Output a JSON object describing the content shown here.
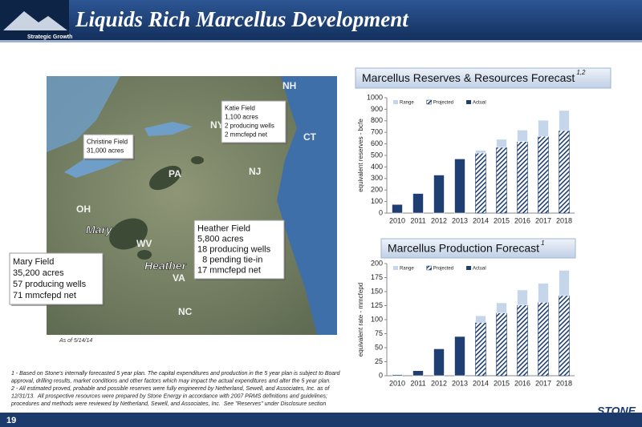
{
  "header": {
    "title": "Liquids Rich Marcellus Development",
    "tag": "Strategic Growth"
  },
  "page_number": "19",
  "logo": "STONE",
  "map": {
    "as_of": "As of 5/14/14",
    "places": [
      "NY",
      "PA",
      "OH",
      "WV",
      "VA",
      "NC",
      "NJ",
      "NH",
      "CT"
    ],
    "fields": [
      "Mary",
      "Heather"
    ],
    "callouts": [
      {
        "lines": [
          "Katie Field",
          "1,100 acres",
          "2 producing wells",
          "2 mmcfepd net"
        ]
      },
      {
        "lines": [
          "Christine Field",
          "31,000 acres"
        ]
      },
      {
        "lines": [
          "Heather Field",
          "5,800 acres",
          "18 producing wells",
          "  8 pending tie-in",
          "17 mmcfepd net"
        ]
      },
      {
        "lines": [
          "Mary Field",
          "35,200 acres",
          "57 producing wells",
          "71 mmcfepd net"
        ]
      }
    ]
  },
  "footnotes": [
    [
      "1 - Based on Stone's internally forecasted 5 year plan. The capital expenditures and production in the 5 year plan is subject to Board",
      "approval, drilling results, market conditions and other factors which may impact the actual expenditures and alter the 5 year plan."
    ],
    [
      "2 - All estimated proved, probable and possible reserves were fully engineered by Netherland, Sewell, and Associates, Inc. as of",
      "12/31/13.  All prospective resources were prepared by Stone Energy in accordance with 2007 PRMS definitions and guidelines;",
      "procedures and methods were reviewed by Netherland, Sewell, and Associates, Inc.  See \"Reserves\" under Disclosure section"
    ]
  ],
  "chart_data": [
    {
      "type": "stacked_bar",
      "title": "Marcellus Reserves & Resources Forecast",
      "title_note": "1,2",
      "y_label": "equivalent reserves - bcfe",
      "categories": [
        "2010",
        "2011",
        "2012",
        "2013",
        "2014",
        "2015",
        "2016",
        "2017",
        "2018"
      ],
      "series": [
        {
          "name": "Actual",
          "color": "#1f3f73",
          "values": [
            75,
            170,
            330,
            470,
            null,
            null,
            null,
            null,
            null
          ]
        },
        {
          "name": "Projected",
          "color": "#1f3f73",
          "hatch": true,
          "values": [
            null,
            null,
            null,
            null,
            520,
            570,
            620,
            665,
            715
          ]
        },
        {
          "name": "Range",
          "color": "#c5d6ea",
          "values": [
            null,
            null,
            null,
            null,
            25,
            70,
            100,
            140,
            175
          ]
        }
      ],
      "legend_order": [
        2,
        1,
        0
      ],
      "ylim": [
        0,
        1000
      ],
      "yticks": [
        0,
        100,
        200,
        300,
        400,
        500,
        600,
        700,
        800,
        900,
        1000
      ]
    },
    {
      "type": "stacked_bar",
      "title": "Marcellus Production Forecast",
      "title_note": "1",
      "y_label": "equivalent rate - mmcfepd",
      "categories": [
        "2010",
        "2011",
        "2012",
        "2013",
        "2014",
        "2015",
        "2016",
        "2017",
        "2018"
      ],
      "series": [
        {
          "name": "Actual",
          "color": "#1f3f73",
          "values": [
            2,
            9,
            48,
            70,
            null,
            null,
            null,
            null,
            null
          ]
        },
        {
          "name": "Projected",
          "color": "#1f3f73",
          "hatch": true,
          "values": [
            null,
            null,
            null,
            null,
            95,
            112,
            126,
            131,
            143
          ]
        },
        {
          "name": "Range",
          "color": "#c5d6ea",
          "values": [
            null,
            null,
            null,
            null,
            12,
            18,
            27,
            34,
            45
          ]
        }
      ],
      "legend_order": [
        2,
        1,
        0
      ],
      "ylim": [
        0,
        200
      ],
      "yticks": [
        0,
        25,
        50,
        75,
        100,
        125,
        150,
        175,
        200
      ]
    }
  ]
}
